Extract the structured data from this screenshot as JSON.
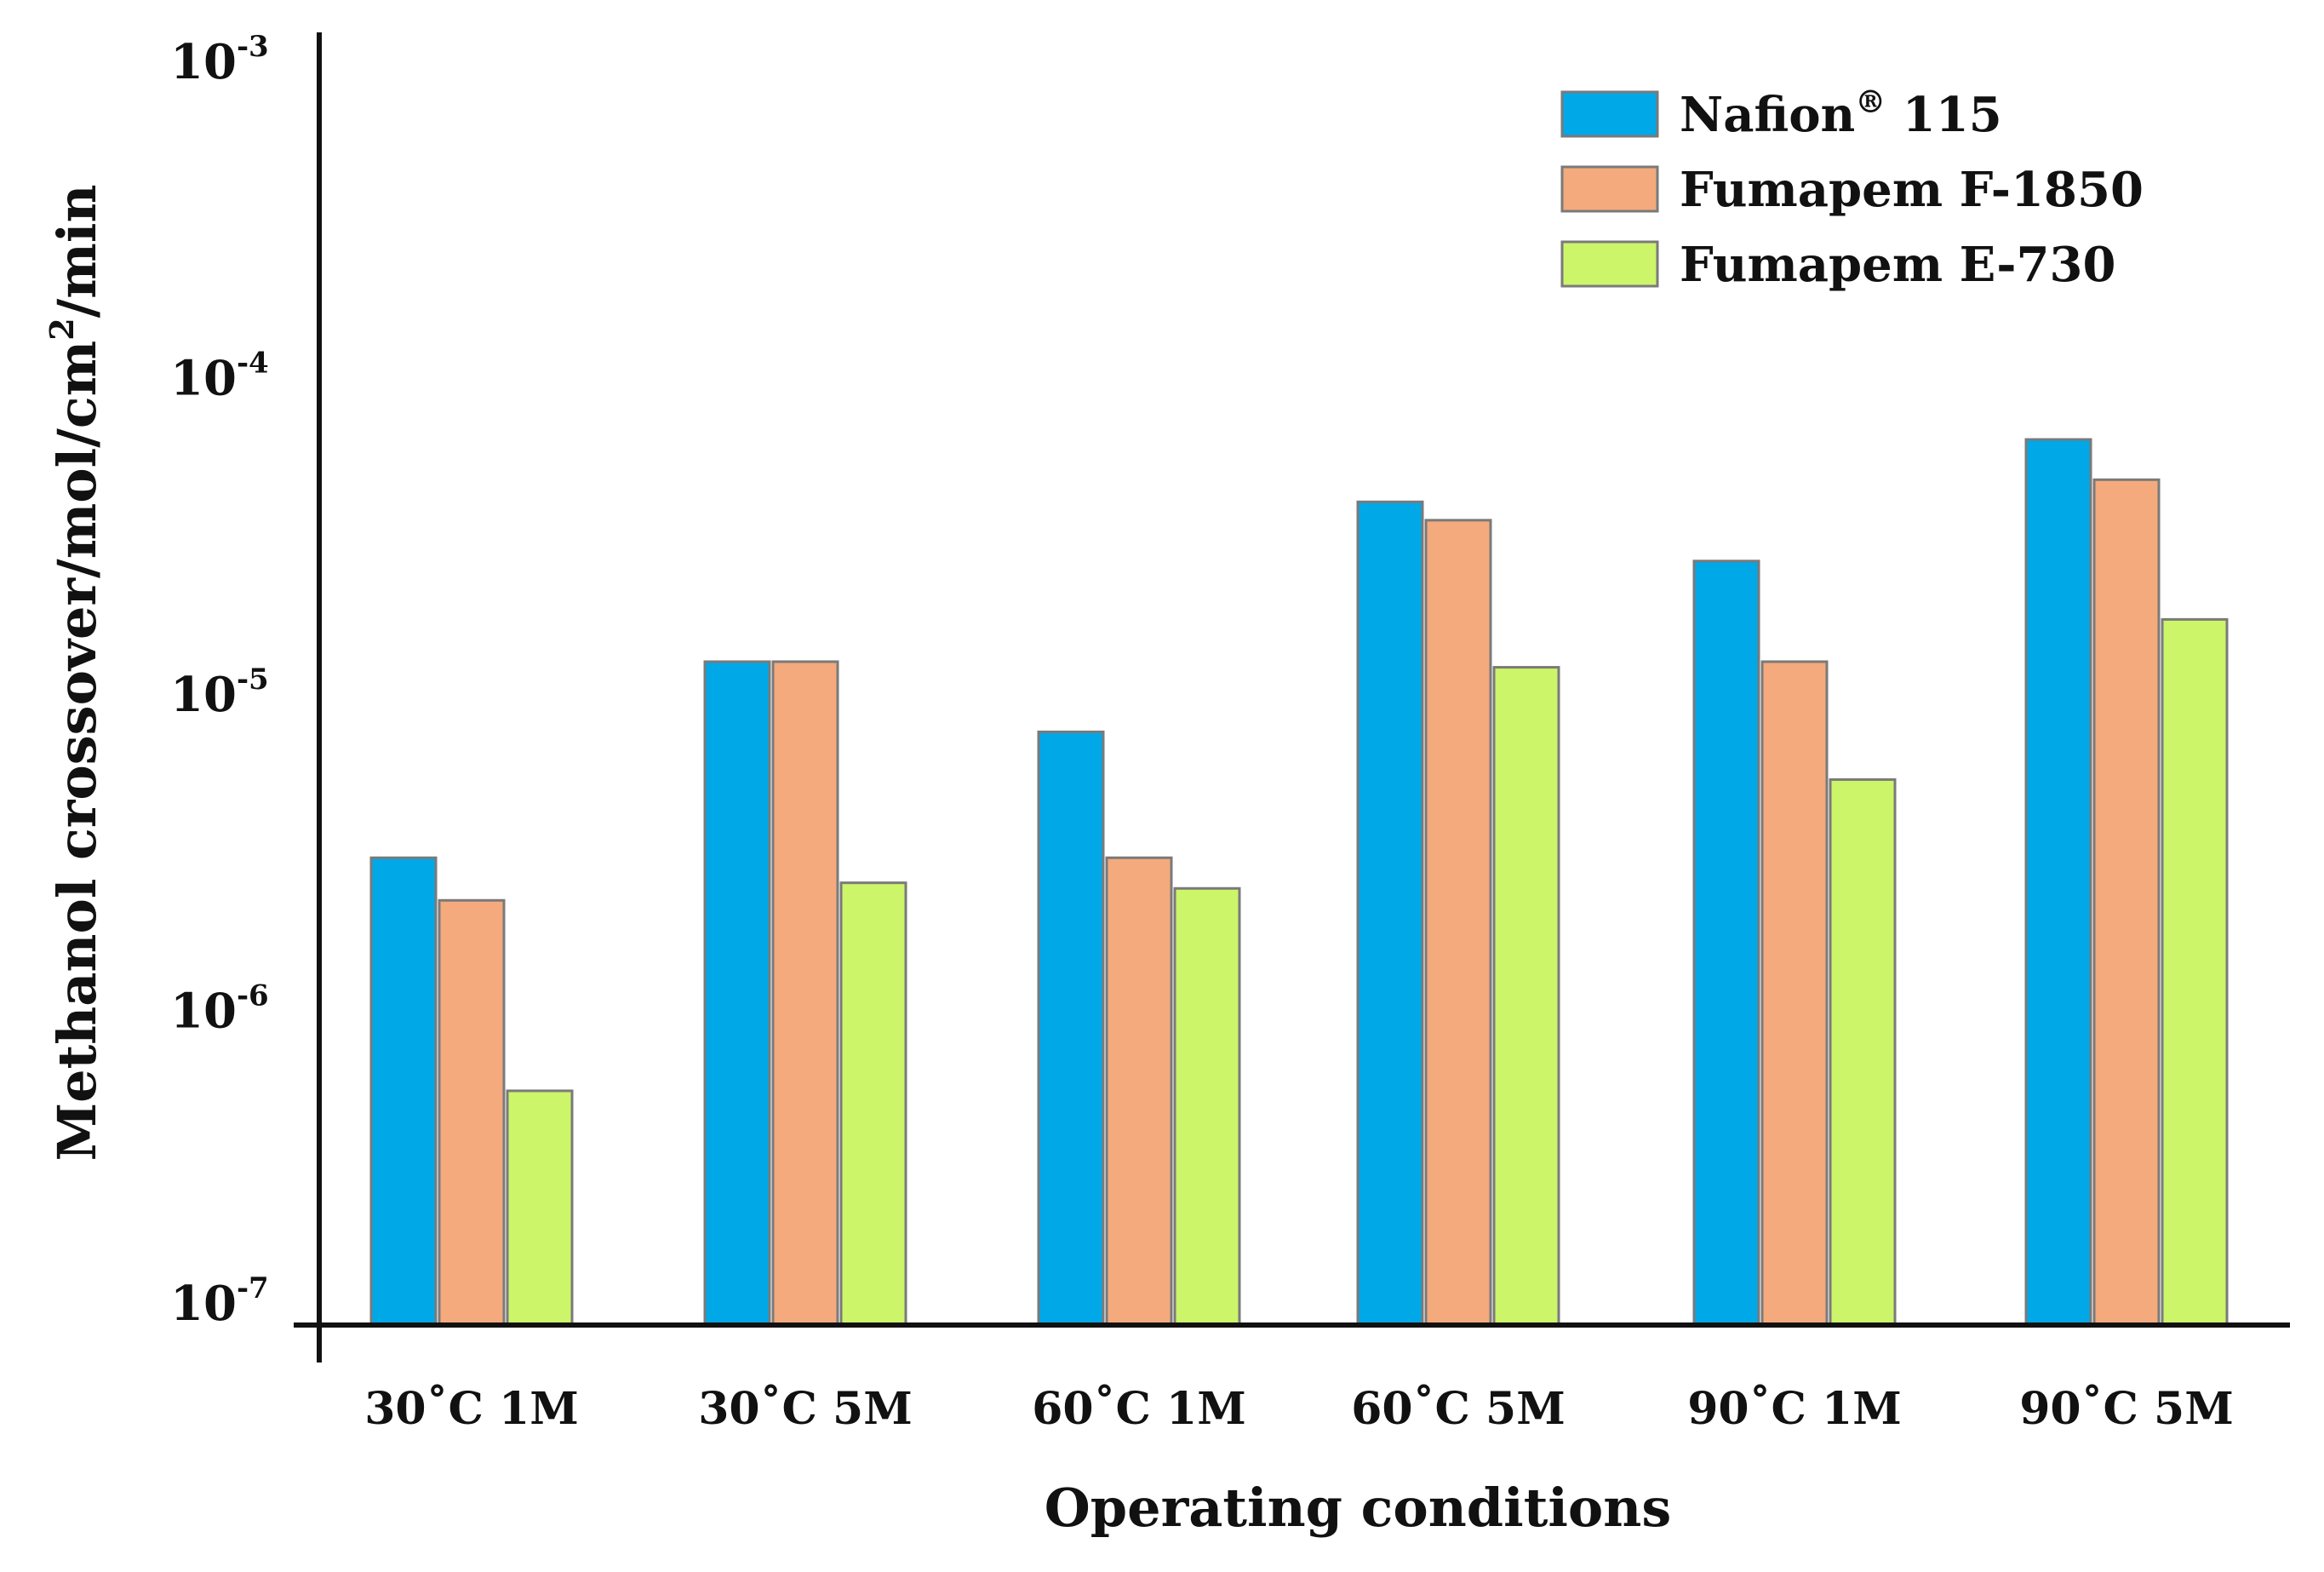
{
  "chart_data": {
    "type": "bar",
    "title": "",
    "xlabel": "Operating conditions",
    "ylabel_parts": [
      "Methanol crossover/mol/cm",
      "2",
      "/min"
    ],
    "yscale": "log",
    "ylim": [
      1e-07,
      0.001
    ],
    "yticks": [
      {
        "base": "10",
        "exp": "-7"
      },
      {
        "base": "10",
        "exp": "-6"
      },
      {
        "base": "10",
        "exp": "-5"
      },
      {
        "base": "10",
        "exp": "-4"
      },
      {
        "base": "10",
        "exp": "-3"
      }
    ],
    "categories": [
      "30˚C 1M",
      "30˚C 5M",
      "60˚C 1M",
      "60˚C 5M",
      "90˚C 1M",
      "90˚C 5M"
    ],
    "series": [
      {
        "name": "Nafion® 115",
        "name_main": "Nafion",
        "name_sup": "®",
        "name_tail": " 115",
        "color": "#00A8E8",
        "values": [
          3e-06,
          1.25e-05,
          7.5e-06,
          4e-05,
          2.6e-05,
          6.3e-05
        ]
      },
      {
        "name": "Fumapem F-1850",
        "name_main": "Fumapem F-1850",
        "name_sup": "",
        "name_tail": "",
        "color": "#F4AA7C",
        "values": [
          2.2e-06,
          1.25e-05,
          3e-06,
          3.5e-05,
          1.25e-05,
          4.7e-05
        ]
      },
      {
        "name": "Fumapem E-730",
        "name_main": "Fumapem E-730",
        "name_sup": "",
        "name_tail": "",
        "color": "#CCF56A",
        "values": [
          5.5e-07,
          2.5e-06,
          2.4e-06,
          1.2e-05,
          5.3e-06,
          1.7e-05
        ]
      }
    ],
    "legend_position": "top-right",
    "grid": false
  },
  "colors": {
    "axis": "#111111",
    "bar_outline": "#7a7a7a"
  }
}
